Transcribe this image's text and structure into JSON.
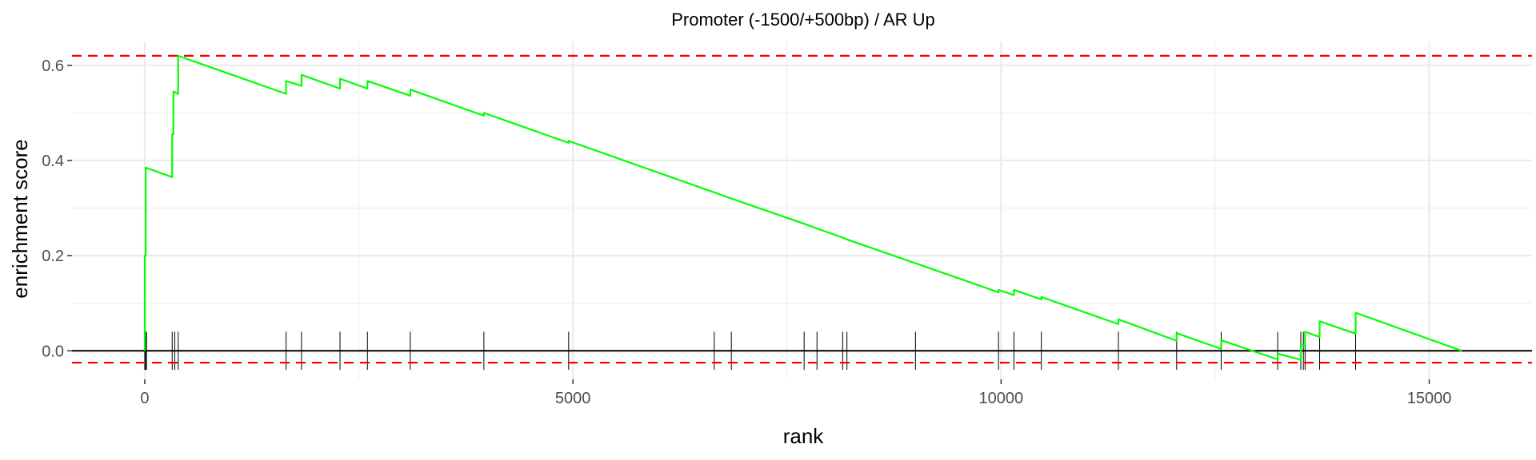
{
  "chart_data": {
    "type": "line",
    "title": "Promoter (-1500/+500bp) / AR Up",
    "xlabel": "rank",
    "ylabel": "enrichment score",
    "xlim": [
      -850,
      16200
    ],
    "ylim": [
      -0.06,
      0.65
    ],
    "x_ticks": [
      0,
      5000,
      10000,
      15000
    ],
    "x_tick_labels": [
      "0",
      "5000",
      "10000",
      "15000"
    ],
    "y_ticks": [
      0.0,
      0.2,
      0.4,
      0.6
    ],
    "y_tick_labels": [
      "0.0",
      "0.2",
      "0.4",
      "0.6"
    ],
    "grid": true,
    "colors": {
      "curve": "#00ff00",
      "threshold": "#ff0000",
      "zero_line": "#000000",
      "hits": "#000000",
      "grid": "#ebebeb"
    },
    "thresholds": [
      0.62,
      -0.025
    ],
    "hits": [
      0,
      10,
      20,
      320,
      350,
      390,
      1650,
      1830,
      2280,
      2600,
      3100,
      3960,
      4950,
      6650,
      6850,
      7700,
      7850,
      8150,
      8200,
      9000,
      9970,
      10150,
      10470,
      11370,
      12050,
      12570,
      13230,
      13500,
      13530,
      13550,
      13720,
      14140
    ],
    "series": [
      {
        "values": [
          [
            0,
            0.0
          ],
          [
            0,
            0.2
          ],
          [
            10,
            0.2
          ],
          [
            10,
            0.385
          ],
          [
            320,
            0.365
          ],
          [
            320,
            0.455
          ],
          [
            335,
            0.455
          ],
          [
            335,
            0.545
          ],
          [
            390,
            0.54
          ],
          [
            390,
            0.62
          ],
          [
            1650,
            0.54
          ],
          [
            1650,
            0.567
          ],
          [
            1830,
            0.557
          ],
          [
            1830,
            0.58
          ],
          [
            2280,
            0.551
          ],
          [
            2280,
            0.572
          ],
          [
            2600,
            0.551
          ],
          [
            2600,
            0.567
          ],
          [
            3100,
            0.536
          ],
          [
            3100,
            0.549
          ],
          [
            3960,
            0.494
          ],
          [
            3960,
            0.5
          ],
          [
            4950,
            0.437
          ],
          [
            4950,
            0.441
          ],
          [
            6650,
            0.333
          ],
          [
            6850,
            0.32
          ],
          [
            7700,
            0.267
          ],
          [
            7850,
            0.257
          ],
          [
            8150,
            0.238
          ],
          [
            8200,
            0.234
          ],
          [
            9000,
            0.184
          ],
          [
            9970,
            0.123
          ],
          [
            9970,
            0.128
          ],
          [
            10150,
            0.117
          ],
          [
            10150,
            0.128
          ],
          [
            10470,
            0.108
          ],
          [
            10470,
            0.113
          ],
          [
            11370,
            0.056
          ],
          [
            11370,
            0.066
          ],
          [
            12050,
            0.021
          ],
          [
            12050,
            0.037
          ],
          [
            12570,
            0.004
          ],
          [
            12570,
            0.022
          ],
          [
            13230,
            -0.018
          ],
          [
            13230,
            -0.006
          ],
          [
            13500,
            -0.019
          ],
          [
            13500,
            0.012
          ],
          [
            13550,
            0.01
          ],
          [
            13550,
            0.04
          ],
          [
            13720,
            0.029
          ],
          [
            13720,
            0.062
          ],
          [
            14140,
            0.036
          ],
          [
            14140,
            0.08
          ],
          [
            15380,
            0.0
          ]
        ]
      }
    ]
  }
}
